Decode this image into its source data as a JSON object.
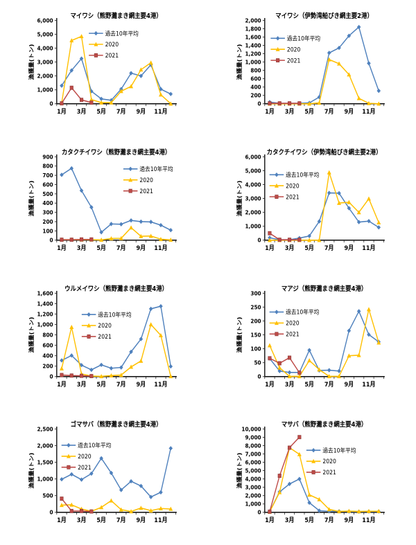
{
  "page": {
    "background": "#ffffff",
    "axis_color": "#1a1a1a",
    "text_color": "#000000"
  },
  "chart_data": [
    {
      "type": "line",
      "title": "マイワシ（熊野灘まき網主要4港）",
      "ylabel": "漁獲量(トン)",
      "ylim": [
        0,
        6000
      ],
      "ytick_step": 1000,
      "grid": false,
      "categories": [
        "1月",
        "2月",
        "3月",
        "4月",
        "5月",
        "6月",
        "7月",
        "8月",
        "9月",
        "10月",
        "11月",
        "12月"
      ],
      "xtick_labels": [
        "1月",
        "3月",
        "5月",
        "7月",
        "9月",
        "11月"
      ],
      "legend_position": {
        "fx": 0.27,
        "fy": 0.1
      },
      "series": [
        {
          "name": "過去10年平均",
          "color": "#4F81BD",
          "marker": "diamond",
          "values": [
            1300,
            2400,
            3250,
            900,
            350,
            250,
            1050,
            2200,
            2000,
            2800,
            1050,
            700
          ]
        },
        {
          "name": "2020",
          "color": "#FFC000",
          "marker": "triangle",
          "values": [
            50,
            4550,
            4850,
            300,
            80,
            80,
            900,
            1250,
            2450,
            2950,
            650,
            0
          ]
        },
        {
          "name": "2021",
          "color": "#BE4B48",
          "marker": "square",
          "values": [
            30,
            1150,
            280,
            80
          ]
        }
      ]
    },
    {
      "type": "line",
      "title": "マイワシ（伊勢湾船びき網主要2港）",
      "ylabel": "漁獲量(トン)",
      "ylim": [
        0,
        2000
      ],
      "ytick_step": 200,
      "grid": false,
      "categories": [
        "1月",
        "2月",
        "3月",
        "4月",
        "5月",
        "6月",
        "7月",
        "8月",
        "9月",
        "10月",
        "11月",
        "12月"
      ],
      "xtick_labels": [
        "1月",
        "3月",
        "5月",
        "7月",
        "9月",
        "11月"
      ],
      "legend_position": {
        "fx": 0.05,
        "fy": 0.16
      },
      "series": [
        {
          "name": "過去10年平均",
          "color": "#4F81BD",
          "marker": "diamond",
          "values": [
            40,
            10,
            10,
            10,
            20,
            160,
            1220,
            1340,
            1630,
            1840,
            970,
            310
          ]
        },
        {
          "name": "2020",
          "color": "#FFC000",
          "marker": "triangle",
          "values": [
            0,
            0,
            0,
            0,
            0,
            20,
            1060,
            960,
            700,
            130,
            10,
            0
          ]
        },
        {
          "name": "2021",
          "color": "#BE4B48",
          "marker": "square",
          "values": [
            10,
            10,
            10,
            10
          ]
        }
      ]
    },
    {
      "type": "line",
      "title": "カタクチイワシ（熊野灘まき網主要4港）",
      "ylabel": "漁獲量(トン)",
      "ylim": [
        0,
        900
      ],
      "ytick_step": 100,
      "grid": false,
      "categories": [
        "1月",
        "2月",
        "3月",
        "4月",
        "5月",
        "6月",
        "7月",
        "8月",
        "9月",
        "10月",
        "11月",
        "12月"
      ],
      "xtick_labels": [
        "1月",
        "3月",
        "5月",
        "7月",
        "9月",
        "11月"
      ],
      "legend_position": {
        "fx": 0.56,
        "fy": 0.09
      },
      "series": [
        {
          "name": "過去10年平均",
          "color": "#4F81BD",
          "marker": "diamond",
          "values": [
            705,
            775,
            535,
            355,
            85,
            175,
            172,
            213,
            200,
            197,
            162,
            108
          ]
        },
        {
          "name": "2020",
          "color": "#FFC000",
          "marker": "triangle",
          "values": [
            5,
            5,
            5,
            5,
            3,
            18,
            20,
            135,
            42,
            45,
            10,
            3
          ]
        },
        {
          "name": "2021",
          "color": "#BE4B48",
          "marker": "square",
          "values": [
            5,
            5,
            8,
            8
          ]
        }
      ]
    },
    {
      "type": "line",
      "title": "カタクチイワシ（伊勢湾船びき網主要2港）",
      "ylabel": "漁獲量(トン)",
      "ylim": [
        0,
        6000
      ],
      "ytick_step": 1000,
      "grid": false,
      "categories": [
        "1月",
        "2月",
        "3月",
        "4月",
        "5月",
        "6月",
        "7月",
        "8月",
        "9月",
        "10月",
        "11月",
        "12月"
      ],
      "xtick_labels": [
        "1月",
        "3月",
        "5月",
        "7月",
        "9月",
        "11月"
      ],
      "legend_position": {
        "fx": 0.04,
        "fy": 0.16
      },
      "series": [
        {
          "name": "過去10年平均",
          "color": "#4F81BD",
          "marker": "diamond",
          "values": [
            170,
            30,
            30,
            150,
            300,
            1350,
            3400,
            3380,
            2300,
            1300,
            1370,
            920
          ]
        },
        {
          "name": "2020",
          "color": "#FFC000",
          "marker": "triangle",
          "values": [
            0,
            0,
            0,
            0,
            0,
            0,
            4870,
            2670,
            2730,
            2000,
            2980,
            1270
          ]
        },
        {
          "name": "2021",
          "color": "#BE4B48",
          "marker": "square",
          "values": [
            500,
            30,
            30,
            30
          ]
        }
      ]
    },
    {
      "type": "line",
      "title": "ウルメイワシ（熊野灘まき網主要4港）",
      "ylabel": "漁獲量(トン)",
      "ylim": [
        0,
        1600
      ],
      "ytick_step": 200,
      "grid": false,
      "categories": [
        "1月",
        "2月",
        "3月",
        "4月",
        "5月",
        "6月",
        "7月",
        "8月",
        "9月",
        "10月",
        "11月",
        "12月"
      ],
      "xtick_labels": [
        "1月",
        "3月",
        "5月",
        "7月",
        "9月",
        "11月"
      ],
      "legend_position": {
        "fx": 0.21,
        "fy": 0.2
      },
      "series": [
        {
          "name": "過去10年平均",
          "color": "#4F81BD",
          "marker": "diamond",
          "values": [
            310,
            405,
            220,
            130,
            225,
            160,
            175,
            475,
            720,
            1300,
            1350,
            195
          ]
        },
        {
          "name": "2020",
          "color": "#FFC000",
          "marker": "triangle",
          "values": [
            155,
            950,
            50,
            10,
            5,
            20,
            30,
            185,
            300,
            1000,
            790,
            5
          ]
        },
        {
          "name": "2021",
          "color": "#BE4B48",
          "marker": "square",
          "values": [
            30,
            20,
            15,
            10
          ]
        }
      ]
    },
    {
      "type": "line",
      "title": "マアジ（熊野灘まき網主要4港）",
      "ylabel": "漁獲量(トン)",
      "ylim": [
        0,
        300
      ],
      "ytick_step": 50,
      "grid": false,
      "categories": [
        "1月",
        "2月",
        "3月",
        "4月",
        "5月",
        "6月",
        "7月",
        "8月",
        "9月",
        "10月",
        "11月",
        "12月"
      ],
      "xtick_labels": [
        "1月",
        "3月",
        "5月",
        "7月",
        "9月",
        "11月"
      ],
      "legend_position": {
        "fx": 0.04,
        "fy": 0.17
      },
      "series": [
        {
          "name": "過去10年平均",
          "color": "#4F81BD",
          "marker": "diamond",
          "values": [
            65,
            20,
            15,
            15,
            95,
            22,
            23,
            20,
            165,
            235,
            151,
            125
          ]
        },
        {
          "name": "2020",
          "color": "#FFC000",
          "marker": "triangle",
          "values": [
            112,
            32,
            1,
            1,
            58,
            25,
            1,
            1,
            75,
            77,
            242,
            122
          ]
        },
        {
          "name": "2021",
          "color": "#BE4B48",
          "marker": "square",
          "values": [
            66,
            48,
            68,
            14
          ]
        }
      ]
    },
    {
      "type": "line",
      "title": "ゴマサバ（熊野灘まき網主要4港）",
      "ylabel": "漁獲量(トン)",
      "ylim": [
        0,
        2500
      ],
      "ytick_step": 500,
      "grid": false,
      "categories": [
        "1月",
        "2月",
        "3月",
        "4月",
        "5月",
        "6月",
        "7月",
        "8月",
        "9月",
        "10月",
        "11月",
        "12月"
      ],
      "xtick_labels": [
        "1月",
        "3月",
        "5月",
        "7月",
        "9月",
        "11月"
      ],
      "legend_position": {
        "fx": 0.04,
        "fy": 0.14
      },
      "series": [
        {
          "name": "過去10年平均",
          "color": "#4F81BD",
          "marker": "diamond",
          "values": [
            990,
            1140,
            980,
            1160,
            1620,
            1180,
            670,
            930,
            790,
            460,
            600,
            1920
          ]
        },
        {
          "name": "2020",
          "color": "#FFC000",
          "marker": "triangle",
          "values": [
            215,
            225,
            100,
            30,
            150,
            350,
            80,
            25,
            130,
            50,
            115,
            100
          ]
        },
        {
          "name": "2021",
          "color": "#BE4B48",
          "marker": "square",
          "values": [
            410,
            40,
            40,
            25
          ]
        }
      ]
    },
    {
      "type": "line",
      "title": "マサバ（熊野灘まき網主要4港）",
      "ylabel": "漁獲量(トン)",
      "ylim": [
        0,
        10000
      ],
      "ytick_step": 1000,
      "grid": false,
      "categories": [
        "1月",
        "2月",
        "3月",
        "4月",
        "5月",
        "6月",
        "7月",
        "8月",
        "9月",
        "10月",
        "11月",
        "12月"
      ],
      "xtick_labels": [
        "1月",
        "3月",
        "5月",
        "7月",
        "9月",
        "11月"
      ],
      "legend_position": {
        "fx": 0.35,
        "fy": 0.2
      },
      "series": [
        {
          "name": "過去10年平均",
          "color": "#4F81BD",
          "marker": "diamond",
          "values": [
            100,
            2450,
            3400,
            4000,
            1150,
            200,
            120,
            130,
            100,
            80,
            100,
            100
          ]
        },
        {
          "name": "2020",
          "color": "#FFC000",
          "marker": "triangle",
          "values": [
            50,
            2400,
            7750,
            6950,
            2100,
            1550,
            350,
            100,
            150,
            100,
            130,
            130
          ]
        },
        {
          "name": "2021",
          "color": "#BE4B48",
          "marker": "square",
          "values": [
            80,
            4380,
            7750,
            9020
          ]
        }
      ]
    }
  ]
}
